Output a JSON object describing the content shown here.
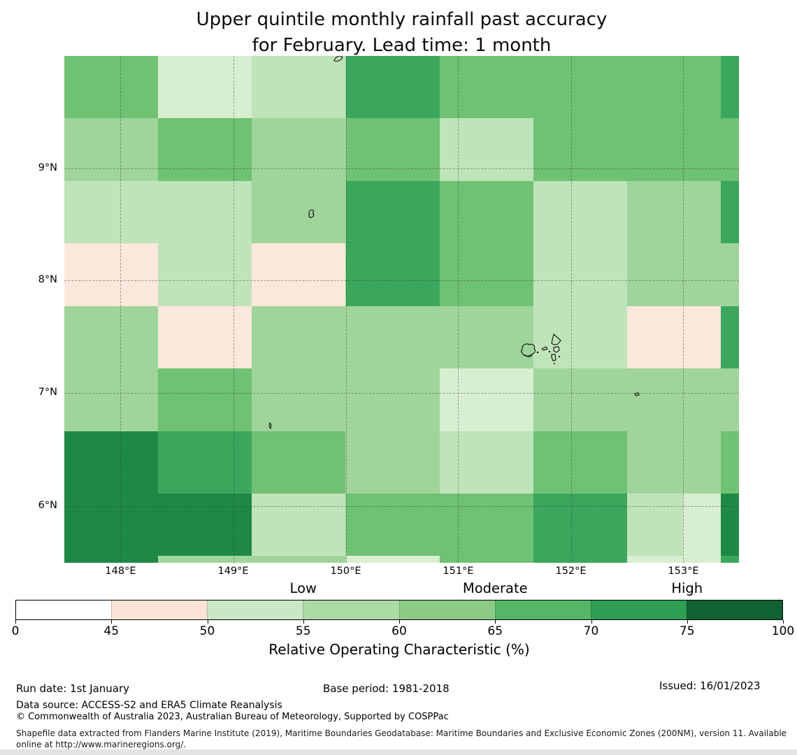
{
  "figure": {
    "title_line1": "Upper quintile monthly rainfall past accuracy",
    "title_line2": "for February. Lead time: 1 month"
  },
  "map": {
    "x_ticks": [
      {
        "label": "148°E",
        "pct": 8.34
      },
      {
        "label": "149°E",
        "pct": 25.03
      },
      {
        "label": "150°E",
        "pct": 41.71
      },
      {
        "label": "151°E",
        "pct": 58.39
      },
      {
        "label": "152°E",
        "pct": 75.08
      },
      {
        "label": "153°E",
        "pct": 91.76
      }
    ],
    "y_ticks": [
      {
        "label": "9°N",
        "pct": 22.14
      },
      {
        "label": "8°N",
        "pct": 44.34
      },
      {
        "label": "7°N",
        "pct": 66.55
      },
      {
        "label": "6°N",
        "pct": 88.76
      }
    ],
    "island_features": [
      "islet at top edge near 149.9E",
      "islet near 8.6N 149.7E",
      "islet near 6.7N 149.8E",
      "Chuuk atoll cluster near 7.4N 151.6E",
      "islet near 7.0N 152.6E"
    ]
  },
  "colorbar": {
    "categories": [
      {
        "label": "Low",
        "pct": 37.5
      },
      {
        "label": "Moderate",
        "pct": 62.5
      },
      {
        "label": "High",
        "pct": 87.5
      }
    ],
    "tick_labels": [
      "0",
      "45",
      "50",
      "55",
      "60",
      "65",
      "70",
      "75",
      "100"
    ],
    "segment_colors": [
      "#ffffff",
      "#fbe3d5",
      "#cbe8c5",
      "#abdba5",
      "#8bcb85",
      "#55b667",
      "#2f9e54",
      "#0e6330"
    ],
    "label": "Relative Operating Characteristic (%)"
  },
  "footer": {
    "run_date": "Run date: 1st January",
    "base_period": "Base period: 1981-2018",
    "issued": "Issued: 16/01/2023",
    "data_source": "Data source: ACCESS-S2 and ERA5 Climate Reanalysis",
    "copyright": "© Commonwealth of Australia 2023, Australian Bureau of Meteorology, Supported by COSPPac",
    "shapefile_note": "Shapefile data extracted from Flanders Marine Institute (2019), Maritime Boundaries Geodatabase: Maritime Boundaries and Exclusive Economic Zones (200NM), version 11. Available online at http://www.marineregions.org/."
  },
  "chart_data": {
    "type": "heatmap",
    "title": "Upper quintile monthly rainfall past accuracy for February. Lead time: 1 month",
    "xlabel": "",
    "ylabel": "",
    "colorbar_label": "Relative Operating Characteristic (%)",
    "x_range_deg_east": [
      147.5,
      153.5
    ],
    "y_range_deg_north": [
      5.5,
      10.0
    ],
    "x_tick_labels": [
      "148°E",
      "149°E",
      "150°E",
      "151°E",
      "152°E",
      "153°E"
    ],
    "y_tick_labels": [
      "9°N",
      "8°N",
      "7°N",
      "6°N"
    ],
    "legend_categories": [
      "Low",
      "Moderate",
      "High"
    ],
    "value_bin_edges": [
      0,
      45,
      50,
      55,
      60,
      65,
      70,
      75,
      100
    ],
    "grid": {
      "cell_size_deg": {
        "lon": 0.833,
        "lat": 0.556
      },
      "col_bounds_pct": [
        0,
        13.9,
        27.8,
        41.71,
        55.61,
        69.51,
        83.42,
        97.31,
        100
      ],
      "row_bounds_pct": [
        0,
        12.34,
        24.67,
        37.01,
        49.34,
        61.68,
        74.01,
        86.35,
        98.68,
        100
      ]
    },
    "values_roc_pct_bin": [
      [
        "65-70",
        "50-55",
        "55-60",
        "70-75",
        "65-70",
        "65-70",
        "65-70",
        "70-75"
      ],
      [
        "60-65",
        "65-70",
        "60-65",
        "65-70",
        "55-60",
        "65-70",
        "65-70",
        "65-70"
      ],
      [
        "55-60",
        "55-60",
        "60-65",
        "70-75",
        "65-70",
        "55-60",
        "60-65",
        "70-75"
      ],
      [
        "45-50",
        "55-60",
        "45-50",
        "70-75",
        "65-70",
        "55-60",
        "60-65",
        "60-65"
      ],
      [
        "60-65",
        "45-50",
        "60-65",
        "60-65",
        "60-65",
        "55-60",
        "45-50",
        "70-75"
      ],
      [
        "60-65",
        "65-70",
        "60-65",
        "60-65",
        "50-55",
        "60-65",
        "60-65",
        "60-65"
      ],
      [
        "75-100",
        "70-75",
        "65-70",
        "60-65",
        "55-60",
        "65-70",
        "60-65",
        "65-70"
      ],
      [
        "75-100",
        "75-100",
        "55-60",
        "65-70",
        "65-70",
        "70-75",
        "55-60",
        "75-100"
      ],
      [
        "75-100",
        "60-65",
        "60-65",
        "50-55",
        "65-70",
        "70-75",
        "50-55",
        "70-75"
      ]
    ],
    "overlay_cells": [
      {
        "x_pct": 91.71,
        "y_pct": 86.35,
        "w_pct": 5.6,
        "h_pct": 12.33,
        "bin": "50-55"
      }
    ],
    "bin_colors": {
      "0-45": "#ffffff",
      "45-50": "#fbe7db",
      "50-55": "#d7eed1",
      "55-60": "#c0e4b9",
      "60-65": "#9fd59a",
      "65-70": "#6fc173",
      "70-75": "#3aa75c",
      "75-100": "#1d8944"
    }
  }
}
